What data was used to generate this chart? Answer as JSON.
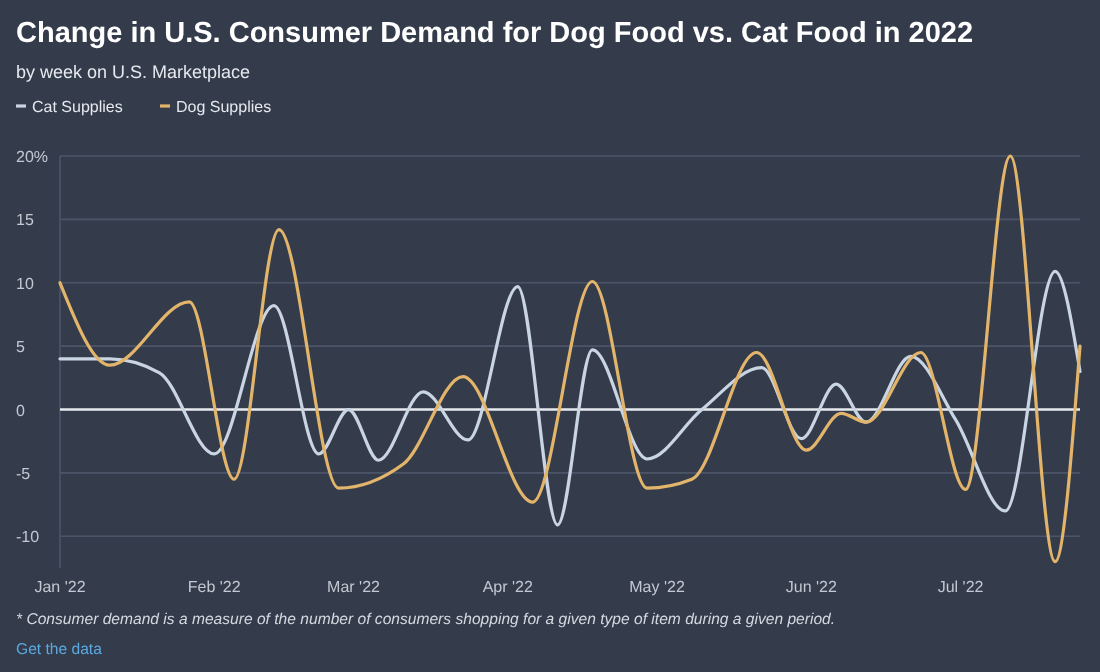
{
  "chart_data": {
    "type": "line",
    "title": "Change in U.S. Consumer Demand for Dog Food vs. Cat Food in 2022",
    "subtitle": "by week on U.S. Marketplace",
    "legend": "top left",
    "grid": "y",
    "line_style": "solid",
    "xlim": [
      "2022-01-01",
      "2022-07-25"
    ],
    "xticks": [
      {
        "value": "2022-01-01",
        "label": "Jan '22"
      },
      {
        "value": "2022-02-01",
        "label": "Feb '22"
      },
      {
        "value": "2022-03-01",
        "label": "Mar '22"
      },
      {
        "value": "2022-04-01",
        "label": "Apr '22"
      },
      {
        "value": "2022-05-01",
        "label": "May '22"
      },
      {
        "value": "2022-06-01",
        "label": "Jun '22"
      },
      {
        "value": "2022-07-01",
        "label": "Jul '22"
      }
    ],
    "ylim": [
      -12.5,
      20
    ],
    "yticks": [
      -10,
      -5,
      0,
      5,
      10,
      15,
      {
        "value": 20,
        "label": "20%"
      }
    ],
    "ref_lines": [
      {
        "axis": "y",
        "value": 0,
        "color": "#e6e9ee"
      }
    ],
    "series": [
      {
        "name": "Cat Supplies",
        "color": "#c9d5e3",
        "x": [
          "2022-01-01",
          "2022-01-11",
          "2022-01-21",
          "2022-02-01",
          "2022-02-13",
          "2022-02-22",
          "2022-02-28",
          "2022-03-06",
          "2022-03-15",
          "2022-03-24",
          "2022-04-03",
          "2022-04-11",
          "2022-04-18",
          "2022-04-29",
          "2022-05-10",
          "2022-05-22",
          "2022-05-30",
          "2022-06-06",
          "2022-06-12",
          "2022-06-21",
          "2022-06-30",
          "2022-07-10",
          "2022-07-20",
          "2022-07-25"
        ],
        "values": [
          4,
          4,
          2.9,
          -3.5,
          8.2,
          -3.5,
          0,
          -4,
          1.4,
          -2.4,
          9.7,
          -9.1,
          4.7,
          -3.9,
          0,
          3.3,
          -2.3,
          2,
          -1,
          4.2,
          -0.8,
          -8,
          10.9,
          3
        ]
      },
      {
        "name": "Dog Supplies",
        "color": "#e3b56a",
        "x": [
          "2022-01-01",
          "2022-01-11",
          "2022-01-27",
          "2022-02-05",
          "2022-02-14",
          "2022-02-26",
          "2022-03-11",
          "2022-03-23",
          "2022-04-06",
          "2022-04-18",
          "2022-04-29",
          "2022-05-08",
          "2022-05-21",
          "2022-05-31",
          "2022-06-07",
          "2022-06-12",
          "2022-06-23",
          "2022-07-02",
          "2022-07-11",
          "2022-07-20",
          "2022-07-25"
        ],
        "values": [
          10,
          3.5,
          8.5,
          -5.5,
          14.2,
          -6.2,
          -4.3,
          2.6,
          -7.3,
          10.1,
          -6.2,
          -5.5,
          4.5,
          -3.2,
          -0.3,
          -1,
          4.5,
          -6.3,
          20,
          -12,
          5
        ]
      }
    ],
    "annotations": [
      "* Consumer demand is a measure of the number of consumers shopping for a given type of item during a given period.",
      "Get the data"
    ]
  }
}
